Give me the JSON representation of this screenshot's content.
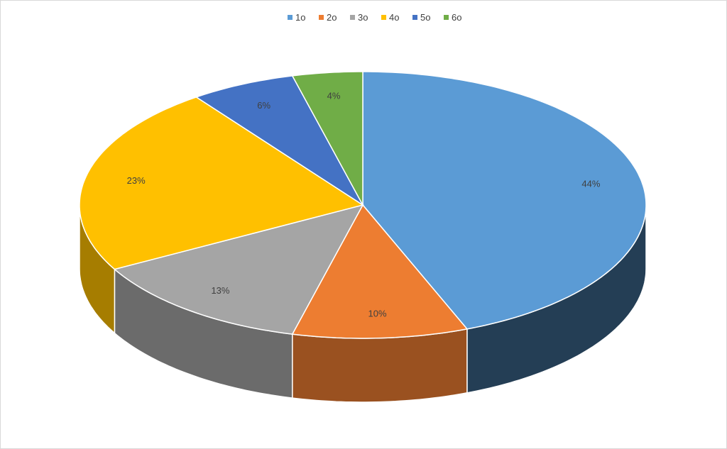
{
  "chart_data": {
    "type": "pie3d",
    "categories": [
      "1o",
      "2o",
      "3o",
      "4o",
      "5o",
      "6o"
    ],
    "values": [
      44,
      10,
      13,
      23,
      6,
      4
    ],
    "value_labels": [
      "44%",
      "10%",
      "13%",
      "23%",
      "6%",
      "4%"
    ],
    "colors": [
      "#5b9bd5",
      "#ed7d31",
      "#a5a5a5",
      "#ffc000",
      "#4472c4",
      "#70ad47"
    ],
    "legend": "top"
  }
}
